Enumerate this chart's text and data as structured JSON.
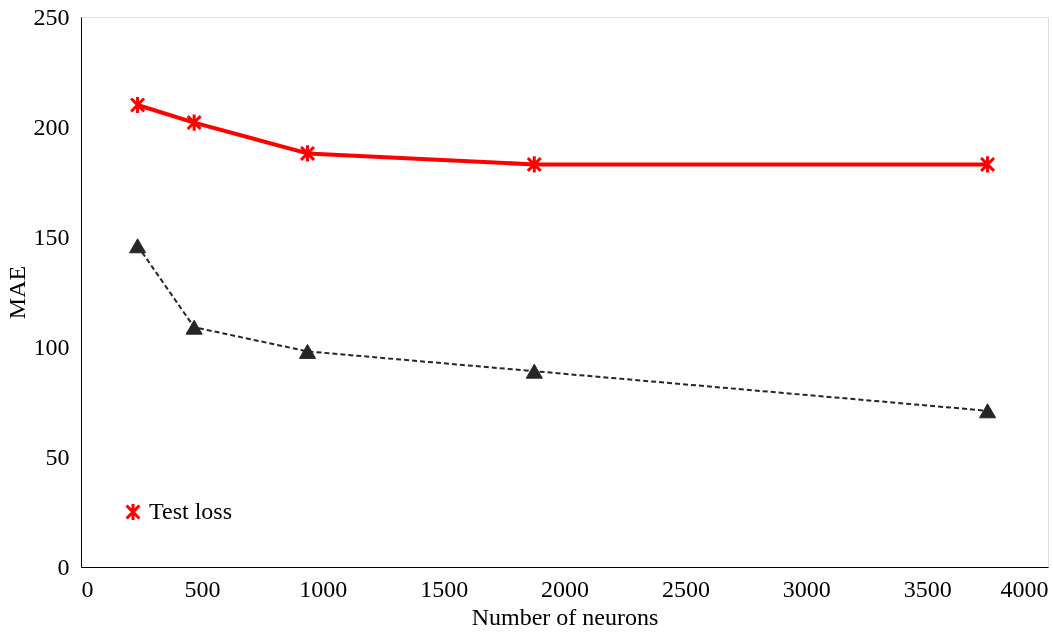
{
  "chart_data": {
    "type": "line",
    "xlabel": "Number of neurons",
    "ylabel": "MAE",
    "x": [
      234,
      468,
      937,
      1875,
      3750
    ],
    "series": [
      {
        "name": "Test loss",
        "color": "#ff0000",
        "marker": "cross",
        "line_style": "solid",
        "values": [
          210,
          202,
          188,
          183,
          183
        ]
      },
      {
        "color": "#262626",
        "marker": "triangle",
        "line_style": "dashed",
        "values": [
          146,
          109,
          98,
          89,
          71
        ]
      }
    ],
    "xlim": [
      0,
      4000
    ],
    "xticks": [
      0,
      500,
      1000,
      1500,
      2000,
      2500,
      3000,
      3500,
      4000
    ],
    "ylim": [
      0,
      250
    ],
    "yticks": [
      0,
      50,
      100,
      150,
      200,
      250
    ],
    "grid": false,
    "legend": "bottom left"
  }
}
